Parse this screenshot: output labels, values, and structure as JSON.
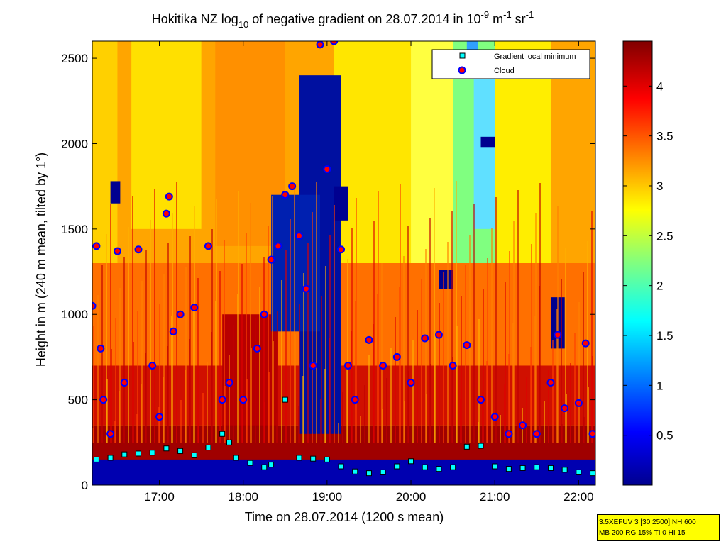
{
  "title": {
    "prefix": "Hokitika NZ log",
    "sub": "10",
    "middle": " of negative gradient on 28.07.2014 in 10",
    "sup1": "-9",
    "unit1": " m",
    "sup2": "-1",
    "unit2": " sr",
    "sup3": "-1"
  },
  "chart_data": {
    "type": "heatmap",
    "xlabel": "Time on 28.07.2014 (1200 s mean)",
    "ylabel": "Height in m (240 m mean, tilted by 1°)",
    "xlim": [
      "16:12",
      "22:12"
    ],
    "ylim": [
      0,
      2600
    ],
    "x_ticks": [
      "17:00",
      "18:00",
      "19:00",
      "20:00",
      "21:00",
      "22:00"
    ],
    "y_ticks": [
      "0",
      "500",
      "1000",
      "1500",
      "2000",
      "2500"
    ],
    "colorbar": {
      "range": [
        0,
        4.45
      ],
      "ticks": [
        "0.5",
        "1",
        "1.5",
        "2",
        "2.5",
        "3",
        "3.5",
        "4"
      ],
      "colormap": "jet"
    },
    "legend": {
      "placement": "top-right",
      "entries": [
        "Gradient local minimum",
        "Cloud"
      ]
    },
    "series": [
      {
        "name": "Gradient local minimum",
        "marker": "square",
        "color": "#00ffff",
        "points": [
          [
            "16:15",
            150
          ],
          [
            "16:25",
            160
          ],
          [
            "16:35",
            180
          ],
          [
            "16:45",
            185
          ],
          [
            "16:55",
            190
          ],
          [
            "17:05",
            215
          ],
          [
            "17:15",
            200
          ],
          [
            "17:25",
            175
          ],
          [
            "17:35",
            220
          ],
          [
            "17:45",
            300
          ],
          [
            "17:50",
            250
          ],
          [
            "17:55",
            160
          ],
          [
            "18:05",
            130
          ],
          [
            "18:15",
            105
          ],
          [
            "18:20",
            120
          ],
          [
            "18:30",
            500
          ],
          [
            "18:40",
            160
          ],
          [
            "18:50",
            155
          ],
          [
            "19:00",
            150
          ],
          [
            "19:10",
            110
          ],
          [
            "19:20",
            80
          ],
          [
            "19:30",
            70
          ],
          [
            "19:40",
            75
          ],
          [
            "19:50",
            110
          ],
          [
            "20:00",
            140
          ],
          [
            "20:10",
            105
          ],
          [
            "20:20",
            95
          ],
          [
            "20:30",
            105
          ],
          [
            "20:40",
            225
          ],
          [
            "20:50",
            230
          ],
          [
            "21:00",
            110
          ],
          [
            "21:10",
            95
          ],
          [
            "21:20",
            100
          ],
          [
            "21:30",
            105
          ],
          [
            "21:40",
            100
          ],
          [
            "21:50",
            90
          ],
          [
            "22:00",
            75
          ],
          [
            "22:10",
            70
          ]
        ]
      },
      {
        "name": "Cloud",
        "marker": "circle",
        "color": "#ff0000",
        "points": [
          [
            "16:12",
            1050
          ],
          [
            "16:15",
            1400
          ],
          [
            "16:18",
            800
          ],
          [
            "16:20",
            500
          ],
          [
            "16:25",
            300
          ],
          [
            "16:30",
            1370
          ],
          [
            "16:35",
            600
          ],
          [
            "16:45",
            1380
          ],
          [
            "16:55",
            700
          ],
          [
            "17:00",
            400
          ],
          [
            "17:05",
            1590
          ],
          [
            "17:07",
            1690
          ],
          [
            "17:10",
            900
          ],
          [
            "17:15",
            1000
          ],
          [
            "17:25",
            1040
          ],
          [
            "17:35",
            1400
          ],
          [
            "17:45",
            500
          ],
          [
            "17:50",
            600
          ],
          [
            "18:00",
            500
          ],
          [
            "18:10",
            800
          ],
          [
            "18:15",
            1000
          ],
          [
            "18:20",
            1320
          ],
          [
            "18:25",
            1400
          ],
          [
            "18:30",
            1700
          ],
          [
            "18:35",
            1750
          ],
          [
            "18:40",
            1460
          ],
          [
            "18:45",
            1150
          ],
          [
            "18:50",
            700
          ],
          [
            "18:55",
            2580
          ],
          [
            "19:00",
            1850
          ],
          [
            "19:05",
            2600
          ],
          [
            "19:10",
            1380
          ],
          [
            "19:15",
            700
          ],
          [
            "19:20",
            500
          ],
          [
            "19:30",
            850
          ],
          [
            "19:40",
            700
          ],
          [
            "19:50",
            750
          ],
          [
            "20:00",
            600
          ],
          [
            "20:10",
            860
          ],
          [
            "20:20",
            880
          ],
          [
            "20:30",
            700
          ],
          [
            "20:40",
            820
          ],
          [
            "20:50",
            500
          ],
          [
            "21:00",
            400
          ],
          [
            "21:10",
            300
          ],
          [
            "21:20",
            350
          ],
          [
            "21:30",
            300
          ],
          [
            "21:40",
            600
          ],
          [
            "21:45",
            880
          ],
          [
            "21:50",
            450
          ],
          [
            "22:00",
            480
          ],
          [
            "22:05",
            830
          ],
          [
            "22:10",
            300
          ]
        ]
      }
    ]
  },
  "info": {
    "line1": "3.5XEFUV 3 [30 2500] NH 600",
    "line2": "MB 200 RG 15% TI 0 HI 15"
  }
}
